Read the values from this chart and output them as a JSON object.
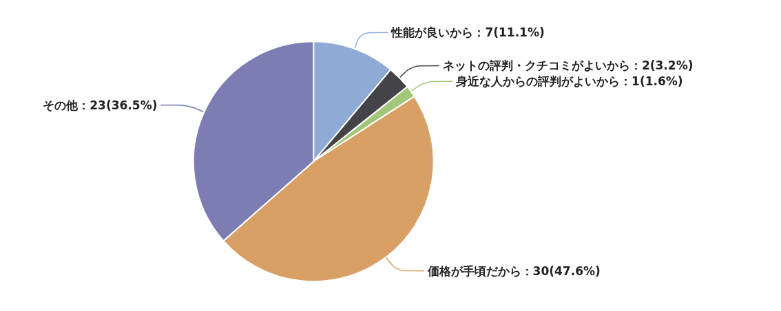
{
  "chart_data": {
    "type": "pie",
    "categories": [
      "性能が良いから",
      "ネットの評判・クチコミがよいから",
      "身近な人からの評判がよいから",
      "価格が手頃だから",
      "その他"
    ],
    "values": [
      7,
      2,
      1,
      30,
      23
    ],
    "colors": [
      "#8eabd6",
      "#444448",
      "#a3c77a",
      "#d9a066",
      "#7b7db3"
    ],
    "value_labels": [
      "：7(11.1%)",
      "：2(3.2%)",
      "：1(1.6%)",
      "：30(47.6%)",
      "：23(36.5%)"
    ],
    "legend": false
  }
}
